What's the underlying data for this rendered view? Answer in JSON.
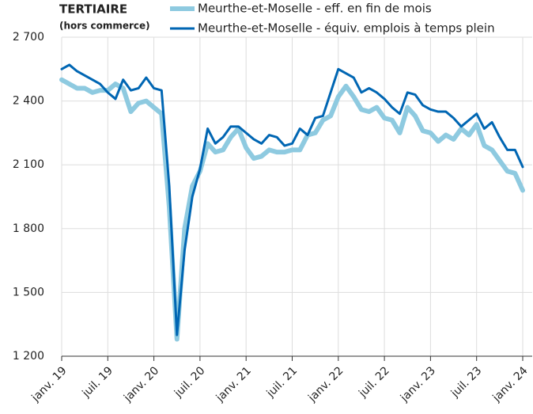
{
  "chart_data": {
    "type": "line",
    "title": "TERTIAIRE",
    "subtitle": "(hors commerce)",
    "categories": [
      "janv. 19",
      null,
      null,
      null,
      null,
      null,
      "juil. 19",
      null,
      null,
      null,
      null,
      null,
      "janv. 20",
      null,
      null,
      null,
      null,
      null,
      "juil. 20",
      null,
      null,
      null,
      null,
      null,
      "janv. 21",
      null,
      null,
      null,
      null,
      null,
      "juil. 21",
      null,
      null,
      null,
      null,
      null,
      "janv. 22",
      null,
      null,
      null,
      null,
      null,
      "juil. 22",
      null,
      null,
      null,
      null,
      null,
      "janv. 23",
      null,
      null,
      null,
      null,
      null,
      "juil. 23",
      null,
      null,
      null,
      null,
      null,
      "janv. 24"
    ],
    "series": [
      {
        "name": "Meurthe-et-Moselle - eff. en fin de mois",
        "color": "#8ecae0",
        "values": [
          2500,
          2480,
          2460,
          2460,
          2440,
          2450,
          2450,
          2480,
          2460,
          2350,
          2390,
          2400,
          2370,
          2340,
          1900,
          1280,
          1800,
          2000,
          2070,
          2200,
          2160,
          2170,
          2230,
          2270,
          2180,
          2130,
          2140,
          2170,
          2160,
          2160,
          2170,
          2170,
          2240,
          2250,
          2310,
          2330,
          2420,
          2470,
          2420,
          2360,
          2350,
          2370,
          2320,
          2310,
          2250,
          2370,
          2330,
          2260,
          2250,
          2210,
          2240,
          2220,
          2270,
          2240,
          2290,
          2190,
          2170,
          2120,
          2070,
          2060,
          1980
        ]
      },
      {
        "name": "Meurthe-et-Moselle - équiv. emplois à temps plein",
        "color": "#0066b3",
        "values": [
          2550,
          2570,
          2540,
          2520,
          2500,
          2480,
          2440,
          2410,
          2500,
          2450,
          2460,
          2510,
          2460,
          2450,
          2000,
          1300,
          1700,
          1950,
          2080,
          2270,
          2200,
          2230,
          2280,
          2280,
          2250,
          2220,
          2200,
          2240,
          2230,
          2190,
          2200,
          2270,
          2240,
          2320,
          2330,
          2440,
          2550,
          2530,
          2510,
          2440,
          2460,
          2440,
          2410,
          2370,
          2340,
          2440,
          2430,
          2380,
          2360,
          2350,
          2350,
          2320,
          2280,
          2310,
          2340,
          2270,
          2300,
          2230,
          2170,
          2170,
          2090
        ]
      }
    ],
    "ylim": [
      1200,
      2700
    ],
    "yticks": [
      {
        "value": 1200,
        "label": "1 200"
      },
      {
        "value": 1500,
        "label": "1 500"
      },
      {
        "value": 1800,
        "label": "1 800"
      },
      {
        "value": 2100,
        "label": "2 100"
      },
      {
        "value": 2400,
        "label": "2 400"
      },
      {
        "value": 2700,
        "label": "2 700"
      }
    ],
    "grid": true
  }
}
